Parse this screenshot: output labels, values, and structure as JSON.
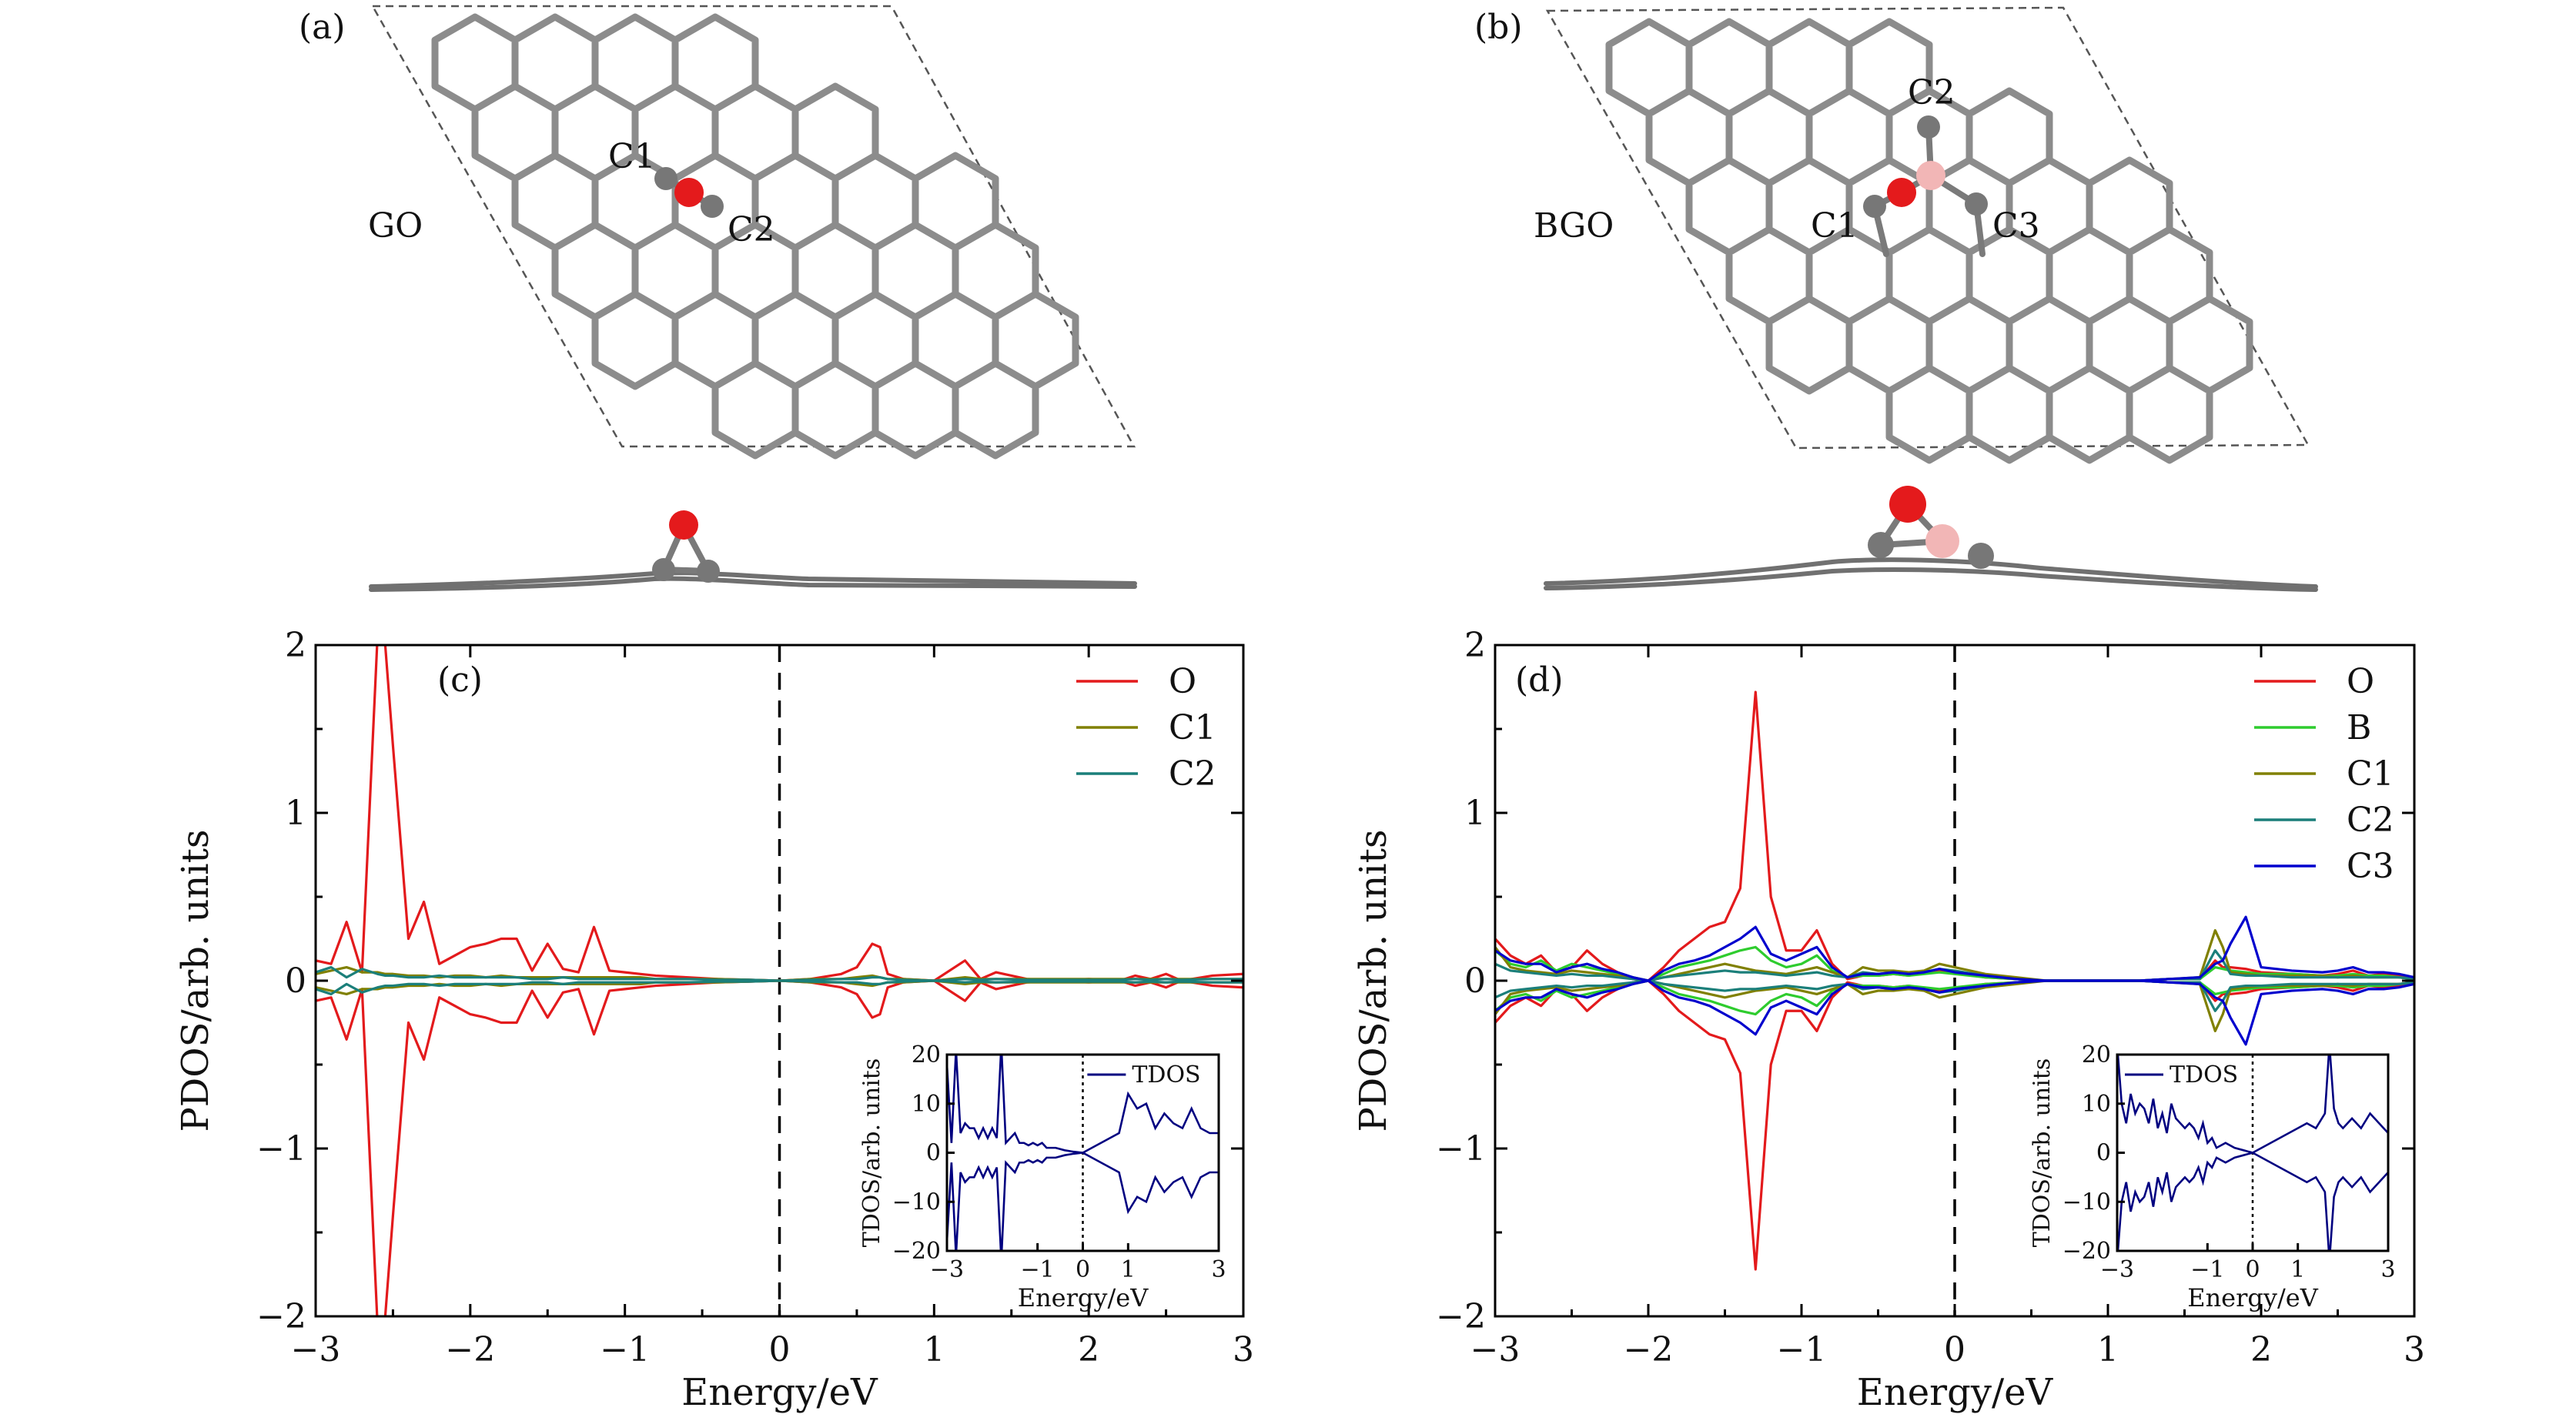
{
  "panels": {
    "a": {
      "tag": "(a)",
      "structure_label": "GO",
      "atom_labels": [
        "C1",
        "C2"
      ],
      "atom_colors": {
        "O": "#e41a1c",
        "C": "#707070"
      }
    },
    "b": {
      "tag": "(b)",
      "structure_label": "BGO",
      "atom_labels": [
        "C2",
        "C1",
        "C3"
      ],
      "atom_colors": {
        "O": "#e41a1c",
        "C": "#707070",
        "B": "#f4b8b8"
      }
    }
  },
  "chart_data": [
    {
      "type": "line",
      "panel": "(c)",
      "xlabel": "Energy/eV",
      "ylabel": "PDOS/arb. units",
      "xlim": [
        -3,
        3
      ],
      "ylim": [
        -2,
        2
      ],
      "xticks": [
        "−3",
        "−2",
        "−1",
        "0",
        "1",
        "2",
        "3"
      ],
      "yticks": [
        "2",
        "1",
        "0",
        "−1",
        "−2"
      ],
      "fermi_level": 0,
      "legend": [
        "O",
        "C1",
        "C2"
      ],
      "mirrored": true,
      "x": [
        -3.0,
        -2.9,
        -2.8,
        -2.7,
        -2.6,
        -2.55,
        -2.5,
        -2.4,
        -2.3,
        -2.2,
        -2.1,
        -2.0,
        -1.9,
        -1.8,
        -1.7,
        -1.6,
        -1.5,
        -1.4,
        -1.3,
        -1.2,
        -1.1,
        -1.0,
        -0.9,
        -0.8,
        -0.6,
        -0.4,
        -0.2,
        0.0,
        0.2,
        0.4,
        0.5,
        0.6,
        0.65,
        0.7,
        0.8,
        1.0,
        1.2,
        1.3,
        1.4,
        1.6,
        1.8,
        2.0,
        2.2,
        2.3,
        2.4,
        2.5,
        2.6,
        2.8,
        3.0
      ],
      "series": [
        {
          "name": "O",
          "color": "#e31a1c",
          "values": [
            0.12,
            0.1,
            0.35,
            0.05,
            2.05,
            2.0,
            1.4,
            0.25,
            0.47,
            0.1,
            0.15,
            0.2,
            0.22,
            0.25,
            0.25,
            0.06,
            0.22,
            0.07,
            0.05,
            0.32,
            0.06,
            0.05,
            0.04,
            0.03,
            0.02,
            0.01,
            0.005,
            0.0,
            0.01,
            0.04,
            0.08,
            0.22,
            0.2,
            0.04,
            0.01,
            0.0,
            0.12,
            0.01,
            0.05,
            0.01,
            0.0,
            0.01,
            0.0,
            0.03,
            0.01,
            0.04,
            0.0,
            0.03,
            0.04
          ]
        },
        {
          "name": "C1",
          "color": "#808000",
          "values": [
            0.04,
            0.06,
            0.08,
            0.05,
            0.05,
            0.04,
            0.04,
            0.03,
            0.03,
            0.02,
            0.03,
            0.03,
            0.02,
            0.03,
            0.02,
            0.02,
            0.02,
            0.02,
            0.02,
            0.02,
            0.02,
            0.02,
            0.02,
            0.01,
            0.01,
            0.01,
            0.005,
            0.0,
            0.01,
            0.01,
            0.02,
            0.03,
            0.02,
            0.01,
            0.01,
            0.0,
            0.02,
            0.01,
            0.01,
            0.01,
            0.01,
            0.01,
            0.01,
            0.01,
            0.01,
            0.01,
            0.01,
            0.01,
            0.01
          ]
        },
        {
          "name": "C2",
          "color": "#1b7f7a",
          "values": [
            0.05,
            0.08,
            0.02,
            0.07,
            0.04,
            0.03,
            0.03,
            0.02,
            0.02,
            0.03,
            0.02,
            0.02,
            0.02,
            0.02,
            0.02,
            0.01,
            0.01,
            0.02,
            0.01,
            0.01,
            0.01,
            0.01,
            0.01,
            0.01,
            0.01,
            0.005,
            0.005,
            0.0,
            0.005,
            0.01,
            0.01,
            0.02,
            0.02,
            0.01,
            0.005,
            0.0,
            0.01,
            0.005,
            0.01,
            0.005,
            0.005,
            0.005,
            0.005,
            0.01,
            0.005,
            0.01,
            0.005,
            0.01,
            0.01
          ]
        }
      ],
      "inset": {
        "xlabel": "Energy/eV",
        "ylabel": "TDOS/arb. units",
        "legend": [
          "TDOS"
        ],
        "xlim": [
          -3,
          3
        ],
        "ylim": [
          -20,
          20
        ],
        "xticks": [
          "−3",
          "−1",
          "0",
          "1",
          "3"
        ],
        "yticks": [
          "20",
          "10",
          "0",
          "−10",
          "−20"
        ],
        "x": [
          -3.0,
          -2.9,
          -2.8,
          -2.7,
          -2.6,
          -2.5,
          -2.4,
          -2.3,
          -2.2,
          -2.1,
          -2.0,
          -1.9,
          -1.8,
          -1.7,
          -1.6,
          -1.5,
          -1.4,
          -1.3,
          -1.2,
          -1.1,
          -1.0,
          -0.9,
          -0.8,
          -0.6,
          -0.4,
          -0.2,
          0.0,
          0.2,
          0.4,
          0.6,
          0.8,
          1.0,
          1.2,
          1.4,
          1.6,
          1.8,
          2.0,
          2.2,
          2.4,
          2.6,
          2.8,
          3.0
        ],
        "series": [
          {
            "name": "TDOS",
            "color": "#000080",
            "values": [
              18,
              2,
              21,
              4,
              6,
              5,
              5,
              3,
              5,
              3,
              5,
              3,
              22,
              2,
              3,
              4,
              2,
              2,
              1.5,
              2,
              1.5,
              2,
              1,
              1,
              0.5,
              0.2,
              0,
              1,
              2,
              3,
              4,
              12,
              9,
              10,
              5,
              8,
              6,
              5,
              9,
              5,
              4,
              4
            ]
          }
        ]
      }
    },
    {
      "type": "line",
      "panel": "(d)",
      "xlabel": "Energy/eV",
      "ylabel": "PDOS/arb. units",
      "xlim": [
        -3,
        3
      ],
      "ylim": [
        -2,
        2
      ],
      "xticks": [
        "−3",
        "−2",
        "−1",
        "0",
        "1",
        "2",
        "3"
      ],
      "yticks": [
        "2",
        "1",
        "0",
        "−1",
        "−2"
      ],
      "fermi_level": 0,
      "legend": [
        "O",
        "B",
        "C1",
        "C2",
        "C3"
      ],
      "mirrored": true,
      "x": [
        -3.0,
        -2.9,
        -2.8,
        -2.7,
        -2.6,
        -2.5,
        -2.4,
        -2.3,
        -2.2,
        -2.1,
        -2.0,
        -1.9,
        -1.8,
        -1.7,
        -1.6,
        -1.5,
        -1.4,
        -1.3,
        -1.2,
        -1.1,
        -1.0,
        -0.9,
        -0.8,
        -0.7,
        -0.6,
        -0.5,
        -0.4,
        -0.3,
        -0.2,
        -0.1,
        0.0,
        0.2,
        0.4,
        0.6,
        0.8,
        1.0,
        1.2,
        1.4,
        1.6,
        1.7,
        1.75,
        1.8,
        1.9,
        2.0,
        2.2,
        2.4,
        2.5,
        2.6,
        2.7,
        2.8,
        2.9,
        3.0
      ],
      "series": [
        {
          "name": "O",
          "color": "#e31a1c",
          "values": [
            0.25,
            0.15,
            0.1,
            0.15,
            0.05,
            0.08,
            0.18,
            0.1,
            0.05,
            0.01,
            0.0,
            0.08,
            0.18,
            0.25,
            0.32,
            0.35,
            0.55,
            1.72,
            0.5,
            0.18,
            0.18,
            0.3,
            0.1,
            0.01,
            0.03,
            0.03,
            0.04,
            0.03,
            0.05,
            0.06,
            0.05,
            0.02,
            0.01,
            0.0,
            0.0,
            0.0,
            0.0,
            0.01,
            0.01,
            0.12,
            0.08,
            0.08,
            0.07,
            0.05,
            0.04,
            0.03,
            0.04,
            0.06,
            0.03,
            0.04,
            0.03,
            0.01
          ]
        },
        {
          "name": "B",
          "color": "#2ecc2e",
          "values": [
            0.18,
            0.1,
            0.08,
            0.12,
            0.06,
            0.1,
            0.08,
            0.06,
            0.04,
            0.02,
            0.0,
            0.04,
            0.08,
            0.1,
            0.12,
            0.15,
            0.18,
            0.2,
            0.12,
            0.08,
            0.1,
            0.15,
            0.06,
            0.02,
            0.03,
            0.03,
            0.04,
            0.03,
            0.04,
            0.05,
            0.04,
            0.02,
            0.01,
            0.0,
            0.0,
            0.0,
            0.0,
            0.01,
            0.01,
            0.08,
            0.07,
            0.06,
            0.05,
            0.04,
            0.04,
            0.03,
            0.03,
            0.04,
            0.03,
            0.03,
            0.02,
            0.01
          ]
        },
        {
          "name": "C1",
          "color": "#808000",
          "values": [
            0.2,
            0.08,
            0.06,
            0.05,
            0.04,
            0.06,
            0.05,
            0.04,
            0.03,
            0.02,
            0.0,
            0.02,
            0.04,
            0.06,
            0.08,
            0.1,
            0.08,
            0.06,
            0.05,
            0.04,
            0.06,
            0.08,
            0.05,
            0.02,
            0.08,
            0.06,
            0.06,
            0.05,
            0.06,
            0.1,
            0.08,
            0.04,
            0.02,
            0.0,
            0.0,
            0.0,
            0.0,
            0.01,
            0.02,
            0.3,
            0.2,
            0.05,
            0.04,
            0.03,
            0.03,
            0.03,
            0.02,
            0.03,
            0.02,
            0.02,
            0.02,
            0.01
          ]
        },
        {
          "name": "C2",
          "color": "#1b7f7a",
          "values": [
            0.1,
            0.06,
            0.05,
            0.04,
            0.03,
            0.04,
            0.03,
            0.03,
            0.02,
            0.01,
            0.0,
            0.02,
            0.03,
            0.04,
            0.05,
            0.06,
            0.05,
            0.05,
            0.04,
            0.03,
            0.04,
            0.05,
            0.03,
            0.02,
            0.05,
            0.04,
            0.05,
            0.04,
            0.05,
            0.07,
            0.06,
            0.03,
            0.01,
            0.0,
            0.0,
            0.0,
            0.0,
            0.01,
            0.01,
            0.18,
            0.12,
            0.04,
            0.03,
            0.03,
            0.02,
            0.02,
            0.02,
            0.02,
            0.02,
            0.02,
            0.02,
            0.01
          ]
        },
        {
          "name": "C3",
          "color": "#0000cd",
          "values": [
            0.18,
            0.12,
            0.1,
            0.1,
            0.05,
            0.08,
            0.1,
            0.07,
            0.05,
            0.02,
            0.0,
            0.06,
            0.1,
            0.12,
            0.15,
            0.2,
            0.25,
            0.32,
            0.16,
            0.12,
            0.16,
            0.2,
            0.08,
            0.02,
            0.04,
            0.04,
            0.05,
            0.04,
            0.05,
            0.07,
            0.05,
            0.03,
            0.01,
            0.0,
            0.0,
            0.0,
            0.0,
            0.01,
            0.02,
            0.1,
            0.12,
            0.22,
            0.38,
            0.08,
            0.06,
            0.05,
            0.06,
            0.08,
            0.05,
            0.05,
            0.04,
            0.02
          ]
        }
      ],
      "inset": {
        "xlabel": "Energy/eV",
        "ylabel": "TDOS/arb. units",
        "legend": [
          "TDOS"
        ],
        "xlim": [
          -3,
          3
        ],
        "ylim": [
          -20,
          20
        ],
        "xticks": [
          "−3",
          "−1",
          "0",
          "1",
          "3"
        ],
        "yticks": [
          "20",
          "10",
          "0",
          "−10",
          "−20"
        ],
        "x": [
          -3.0,
          -2.9,
          -2.8,
          -2.7,
          -2.6,
          -2.5,
          -2.4,
          -2.3,
          -2.2,
          -2.1,
          -2.0,
          -1.9,
          -1.8,
          -1.7,
          -1.6,
          -1.5,
          -1.4,
          -1.3,
          -1.2,
          -1.1,
          -1.0,
          -0.9,
          -0.8,
          -0.6,
          -0.4,
          -0.2,
          0.0,
          0.2,
          0.4,
          0.6,
          0.8,
          1.0,
          1.2,
          1.4,
          1.6,
          1.7,
          1.8,
          1.9,
          2.0,
          2.2,
          2.4,
          2.6,
          2.8,
          3.0
        ],
        "series": [
          {
            "name": "TDOS",
            "color": "#000080",
            "values": [
              22,
              10,
              6,
              12,
              8,
              10,
              9,
              6,
              11,
              5,
              8,
              4,
              10,
              7,
              6,
              5,
              6,
              5,
              3,
              6,
              2,
              3,
              1,
              2,
              1,
              0.5,
              0,
              1,
              2,
              3,
              4,
              5,
              6,
              5,
              8,
              22,
              9,
              6,
              5,
              7,
              5,
              8,
              6,
              4
            ]
          }
        ]
      }
    }
  ]
}
